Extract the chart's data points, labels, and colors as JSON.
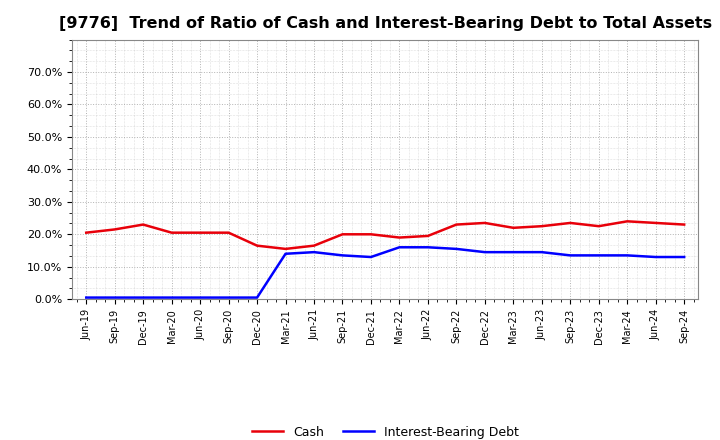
{
  "title": "[9776]  Trend of Ratio of Cash and Interest-Bearing Debt to Total Assets",
  "title_fontsize": 11.5,
  "ylim": [
    0.0,
    0.8
  ],
  "yticks": [
    0.0,
    0.1,
    0.2,
    0.3,
    0.4,
    0.5,
    0.6,
    0.7
  ],
  "x_labels": [
    "Jun-19",
    "Sep-19",
    "Dec-19",
    "Mar-20",
    "Jun-20",
    "Sep-20",
    "Dec-20",
    "Mar-21",
    "Jun-21",
    "Sep-21",
    "Dec-21",
    "Mar-22",
    "Jun-22",
    "Sep-22",
    "Dec-22",
    "Mar-23",
    "Jun-23",
    "Sep-23",
    "Dec-23",
    "Mar-24",
    "Jun-24",
    "Sep-24"
  ],
  "cash": [
    0.205,
    0.215,
    0.23,
    0.205,
    0.205,
    0.205,
    0.165,
    0.155,
    0.165,
    0.2,
    0.2,
    0.19,
    0.195,
    0.23,
    0.235,
    0.22,
    0.225,
    0.235,
    0.225,
    0.24,
    0.235,
    0.23
  ],
  "interest_bearing_debt": [
    0.005,
    0.005,
    0.005,
    0.005,
    0.005,
    0.005,
    0.005,
    0.14,
    0.145,
    0.135,
    0.13,
    0.16,
    0.16,
    0.155,
    0.145,
    0.145,
    0.145,
    0.135,
    0.135,
    0.135,
    0.13,
    0.13
  ],
  "cash_color": "#e8000a",
  "debt_color": "#0000ff",
  "grid_color": "#aaaaaa",
  "bg_color": "#ffffff",
  "plot_bg_color": "#ffffff",
  "legend_cash": "Cash",
  "legend_debt": "Interest-Bearing Debt",
  "line_width": 1.8
}
